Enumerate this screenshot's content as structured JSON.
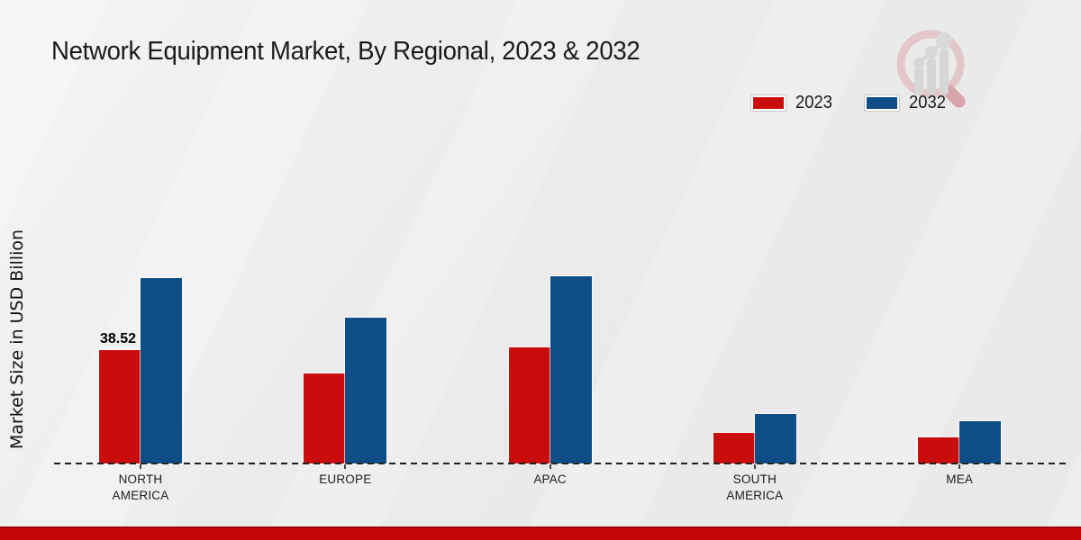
{
  "page": {
    "footer_band_color": "#c50606",
    "logo_icon": "magnifier-bar-chart-icon",
    "background_color": "#ebebeb"
  },
  "chart_data": {
    "type": "bar",
    "title": "Network Equipment Market, By Regional, 2023 & 2032",
    "xlabel": "",
    "ylabel": "Market Size in USD Billion",
    "units": "USD Billion",
    "categories": [
      "NORTH AMERICA",
      "EUROPE",
      "APAC",
      "SOUTH AMERICA",
      "MEA"
    ],
    "series": [
      {
        "name": "2023",
        "color": "#c90d0d",
        "values": [
          38.52,
          30.65,
          39.44,
          10.42,
          8.89
        ]
      },
      {
        "name": "2032",
        "color": "#0e4d86",
        "values": [
          63.13,
          49.56,
          63.84,
          16.86,
          14.31
        ]
      }
    ],
    "annotations": [
      {
        "series_index": 0,
        "category_index": 0,
        "text": "38.52"
      }
    ],
    "legend_position": "top-right",
    "grid": false,
    "baseline_style": "dashed",
    "ylim": [
      0,
      70
    ]
  }
}
